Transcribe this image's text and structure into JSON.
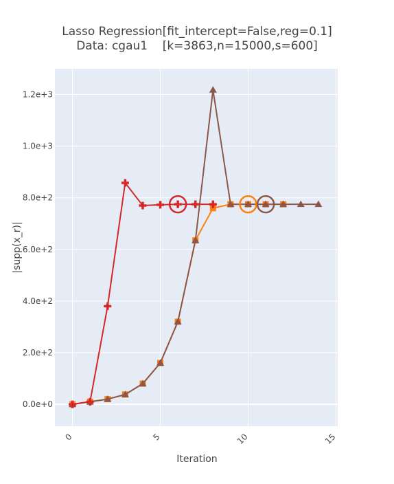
{
  "chart_data": {
    "type": "line",
    "title_line1": "Lasso Regression[fit_intercept=False,reg=0.1]",
    "title_line2": "Data: cgau1    [k=3863,n=15000,s=600]",
    "xlabel": "Iteration",
    "ylabel": "|supp(x_r)|",
    "xlim": [
      -1.0,
      15.1
    ],
    "ylim": [
      -85,
      1300
    ],
    "x_ticks": [
      0,
      5,
      10,
      15
    ],
    "y_ticks": [
      0,
      200,
      400,
      600,
      800,
      1000,
      1200
    ],
    "y_tick_labels": [
      "0.0e+0",
      "2.0e+2",
      "4.0e+2",
      "6.0e+2",
      "8.0e+2",
      "1.0e+3",
      "1.2e+3"
    ],
    "grid": true,
    "legend": "none",
    "colors": {
      "plot_bg": "#e5ecf6",
      "grid": "#ffffff",
      "red": "#d62728",
      "orange": "#ff7f0e",
      "brown": "#8c564b"
    },
    "series": [
      {
        "color": "#ff7f0e",
        "marker": "square",
        "x": [
          0,
          1,
          2,
          3,
          4,
          5,
          6,
          7,
          8,
          9,
          10,
          11,
          12
        ],
        "y": [
          0,
          10,
          20,
          38,
          80,
          160,
          320,
          635,
          760,
          775,
          775,
          775,
          775
        ]
      },
      {
        "color": "#8c564b",
        "marker": "triangle-up",
        "x": [
          0,
          1,
          2,
          3,
          4,
          5,
          6,
          7,
          8,
          9,
          10,
          11,
          12,
          13,
          14
        ],
        "y": [
          0,
          10,
          20,
          38,
          80,
          160,
          320,
          635,
          1218,
          775,
          775,
          775,
          775,
          775,
          775
        ]
      },
      {
        "color": "#d62728",
        "marker": "cross",
        "x": [
          0,
          1,
          2,
          3,
          4,
          5,
          6,
          7,
          8
        ],
        "y": [
          0,
          10,
          380,
          858,
          770,
          773,
          775,
          775,
          775
        ]
      }
    ],
    "highlights": [
      {
        "color": "#d62728",
        "x": 6,
        "y": 775
      },
      {
        "color": "#ff7f0e",
        "x": 10,
        "y": 775
      },
      {
        "color": "#8c564b",
        "x": 11,
        "y": 775
      }
    ]
  }
}
